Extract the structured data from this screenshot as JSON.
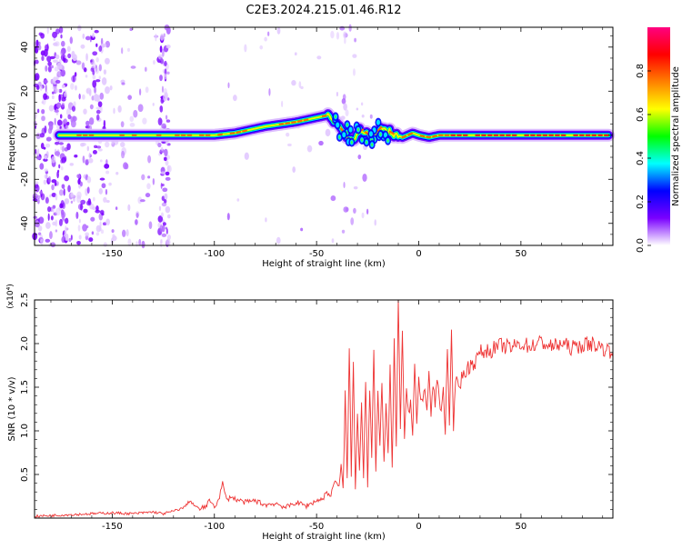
{
  "title": "C2E3.2024.215.01.46.R12",
  "chart_data": [
    {
      "type": "heatmap",
      "xlabel": "Height of straight line (km)",
      "ylabel": "Frequency (Hz)",
      "xlim": [
        -188,
        95
      ],
      "ylim": [
        -50,
        49
      ],
      "xticks": [
        -150,
        -100,
        -50,
        0,
        50
      ],
      "xtick_labels": [
        "-150",
        "-100",
        "-50",
        "0",
        "50"
      ],
      "yticks": [
        -40,
        -20,
        0,
        20,
        40
      ],
      "ytick_labels": [
        "-40",
        "-20",
        "0",
        "20",
        "40"
      ],
      "ridge": {
        "x": [
          -175,
          -150,
          -125,
          -110,
          -100,
          -90,
          -85,
          -75,
          -60,
          -50,
          -45,
          -42,
          -38,
          -33,
          -28,
          -23,
          -18,
          -13,
          -8,
          -3,
          0,
          5,
          10,
          15,
          20,
          40,
          60,
          80,
          93
        ],
        "freq": [
          0,
          0,
          0,
          0,
          0,
          1,
          2,
          4,
          6,
          8,
          9,
          7,
          3,
          -2,
          3,
          -1,
          4,
          1,
          -1,
          1,
          0,
          -1,
          0,
          0,
          0,
          0,
          0,
          0,
          0
        ]
      },
      "colorbar": {
        "label": "Normalized spectral amplitude",
        "range": [
          0.0,
          1.0
        ],
        "ticks": [
          0.0,
          0.2,
          0.4,
          0.6,
          0.8
        ],
        "tick_labels": [
          "0.0",
          "0.2",
          "0.4",
          "0.6",
          "0.8"
        ],
        "colors": [
          "#ffffff",
          "#7a00ff",
          "#0000ff",
          "#00ffff",
          "#00ff00",
          "#ffff00",
          "#ff8000",
          "#ff0000",
          "#ff0080"
        ]
      }
    },
    {
      "type": "line",
      "xlabel": "Height of straight line (km)",
      "ylabel": "SNR (10 * v/v)",
      "scale_label": "(x10⁴)",
      "xlim": [
        -188,
        95
      ],
      "ylim": [
        0,
        2.5
      ],
      "xticks": [
        -150,
        -100,
        -50,
        0,
        50
      ],
      "xtick_labels": [
        "-150",
        "-100",
        "-50",
        "0",
        "50"
      ],
      "yticks": [
        0.5,
        1.0,
        1.5,
        2.0,
        2.5
      ],
      "ytick_labels": [
        "0.5",
        "1.0",
        "1.5",
        "2.0",
        "2.5"
      ],
      "color": "#ee3333",
      "series": [
        {
          "x": [
            -188,
            -180,
            -170,
            -160,
            -150,
            -140,
            -130,
            -125,
            -120,
            -115,
            -112,
            -110,
            -108,
            -105,
            -102,
            -100,
            -98,
            -96,
            -94,
            -92,
            -90,
            -85,
            -80,
            -75,
            -70,
            -65,
            -60,
            -55,
            -50,
            -47,
            -45,
            -43,
            -41,
            -39,
            -38,
            -37,
            -36,
            -35,
            -34,
            -33,
            -32,
            -31,
            -30,
            -29,
            -28,
            -27,
            -26,
            -25,
            -24,
            -23,
            -22,
            -21,
            -20,
            -19,
            -18,
            -17,
            -16,
            -15,
            -14,
            -13,
            -12,
            -11,
            -10,
            -9,
            -8,
            -7,
            -6,
            -5,
            -4,
            -3,
            -2,
            -1,
            0,
            1,
            2,
            3,
            4,
            5,
            6,
            7,
            8,
            9,
            10,
            11,
            12,
            13,
            14,
            15,
            16,
            17,
            18,
            20,
            22,
            25,
            28,
            30,
            35,
            40,
            45,
            50,
            55,
            60,
            65,
            70,
            75,
            80,
            85,
            90,
            95
          ],
          "values": [
            0.02,
            0.03,
            0.04,
            0.05,
            0.06,
            0.05,
            0.07,
            0.05,
            0.08,
            0.12,
            0.2,
            0.15,
            0.1,
            0.12,
            0.2,
            0.14,
            0.2,
            0.4,
            0.2,
            0.25,
            0.22,
            0.18,
            0.2,
            0.15,
            0.17,
            0.12,
            0.18,
            0.14,
            0.2,
            0.22,
            0.3,
            0.25,
            0.45,
            0.35,
            0.6,
            0.3,
            1.45,
            0.4,
            2.0,
            0.5,
            1.8,
            0.3,
            1.2,
            0.6,
            1.3,
            0.5,
            1.6,
            0.4,
            1.5,
            0.7,
            1.9,
            0.5,
            1.4,
            0.8,
            1.6,
            0.6,
            1.35,
            0.7,
            1.7,
            0.55,
            2.0,
            0.8,
            2.5,
            1.0,
            2.1,
            0.9,
            1.5,
            1.2,
            1.3,
            1.0,
            1.8,
            1.1,
            1.6,
            1.3,
            1.4,
            1.45,
            1.2,
            1.7,
            1.15,
            1.55,
            1.3,
            1.6,
            1.4,
            1.2,
            1.5,
            1.0,
            1.9,
            1.1,
            2.1,
            0.95,
            1.6,
            1.55,
            1.65,
            1.75,
            1.8,
            1.9,
            1.92,
            1.98,
            1.95,
            2.0,
            1.97,
            2.02,
            1.96,
            2.0,
            1.95,
            1.98,
            2.0,
            1.95,
            1.9
          ]
        }
      ]
    }
  ]
}
